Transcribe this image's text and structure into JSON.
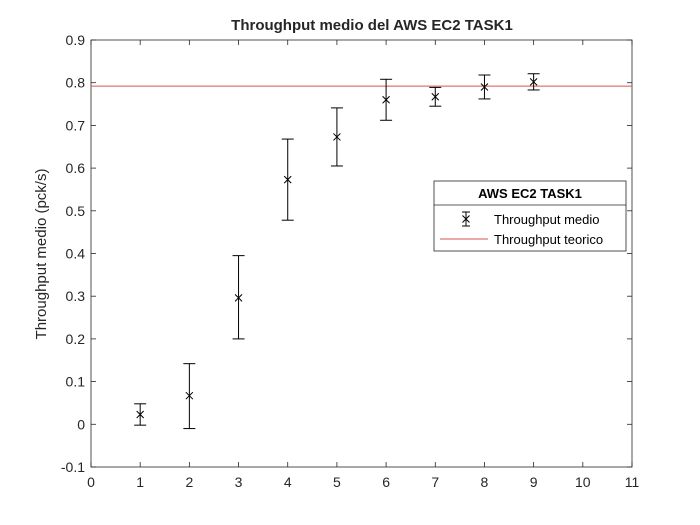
{
  "chart_data": {
    "type": "scatter",
    "title": "Throughput medio del AWS EC2 TASK1",
    "xlabel": "",
    "ylabel": "Throughput medio (pck/s)",
    "xlim": [
      0,
      11
    ],
    "ylim": [
      -0.1,
      0.9
    ],
    "x_ticks": [
      "0",
      "1",
      "2",
      "3",
      "4",
      "5",
      "6",
      "7",
      "8",
      "9",
      "10",
      "11"
    ],
    "y_ticks": [
      "-0.1",
      "0",
      "0.1",
      "0.2",
      "0.3",
      "0.4",
      "0.5",
      "0.6",
      "0.7",
      "0.8",
      "0.9"
    ],
    "grid": false,
    "legend": {
      "title": "AWS EC2 TASK1",
      "placement": "right"
    },
    "series": [
      {
        "name": "Throughput medio",
        "marker": "x",
        "color": "#000000",
        "points": [
          {
            "x": 1,
            "y": 0.023,
            "lo": -0.002,
            "hi": 0.048
          },
          {
            "x": 2,
            "y": 0.067,
            "lo": -0.01,
            "hi": 0.142
          },
          {
            "x": 3,
            "y": 0.296,
            "lo": 0.2,
            "hi": 0.395
          },
          {
            "x": 4,
            "y": 0.573,
            "lo": 0.478,
            "hi": 0.668
          },
          {
            "x": 5,
            "y": 0.673,
            "lo": 0.605,
            "hi": 0.741
          },
          {
            "x": 6,
            "y": 0.76,
            "lo": 0.712,
            "hi": 0.808
          },
          {
            "x": 7,
            "y": 0.767,
            "lo": 0.745,
            "hi": 0.789
          },
          {
            "x": 8,
            "y": 0.79,
            "lo": 0.762,
            "hi": 0.818
          },
          {
            "x": 9,
            "y": 0.802,
            "lo": 0.783,
            "hi": 0.821
          }
        ]
      },
      {
        "name": "Throughput teorico",
        "type": "hline",
        "color": "#d9534f",
        "y": 0.792
      }
    ]
  }
}
